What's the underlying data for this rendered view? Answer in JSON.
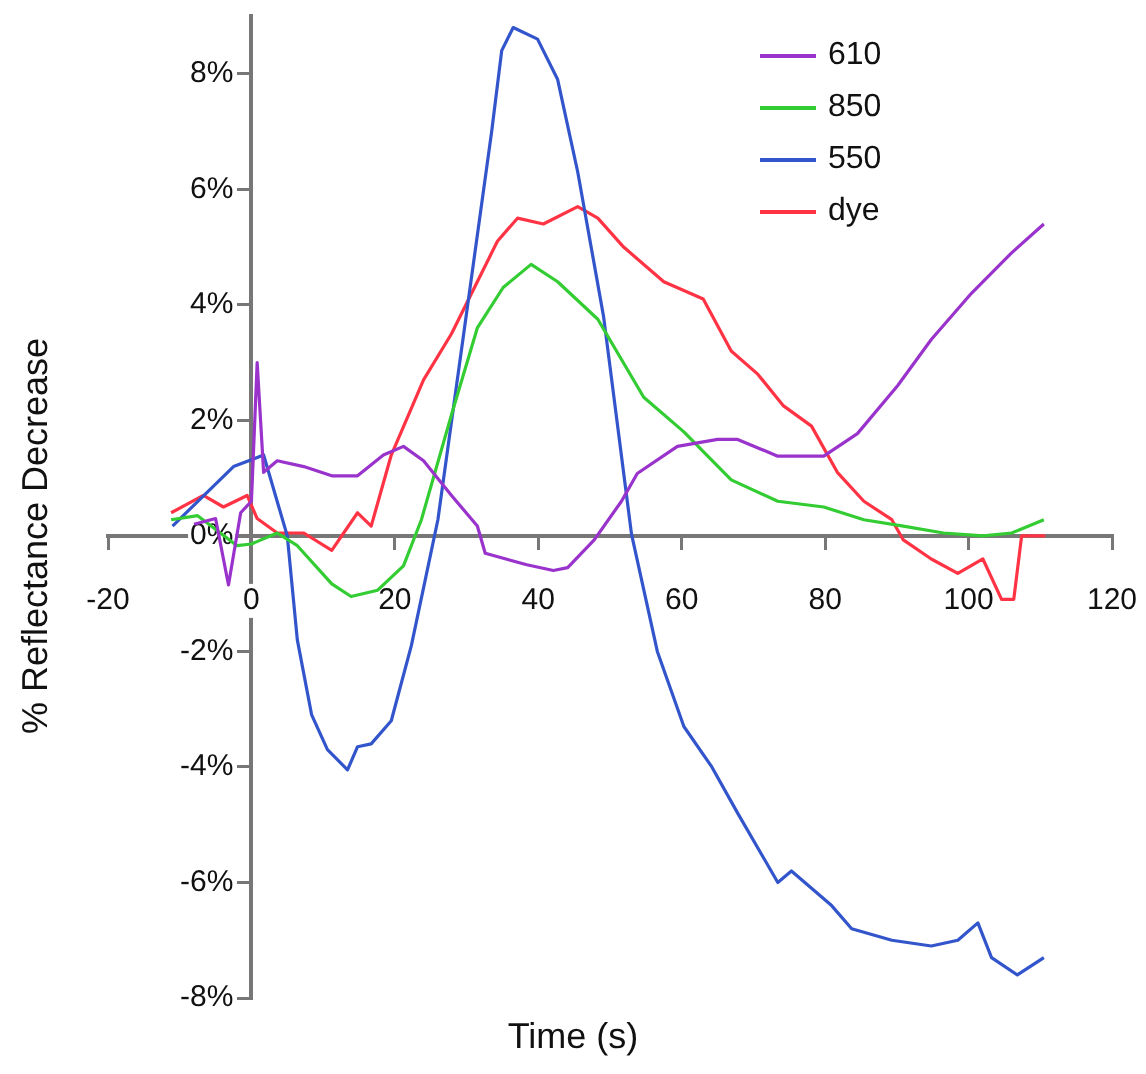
{
  "chart_data": {
    "type": "line",
    "xlabel": "Time (s)",
    "ylabel": "% Reflectance Decrease",
    "xlim": [
      -20,
      120
    ],
    "xticks": [
      -20,
      0,
      20,
      40,
      60,
      80,
      100,
      120
    ],
    "ylim": [
      -8,
      9
    ],
    "yticks": [
      {
        "value": -8,
        "label": "-8%"
      },
      {
        "value": -6,
        "label": "-6%"
      },
      {
        "value": -4,
        "label": "-4%"
      },
      {
        "value": -2,
        "label": "-2%"
      },
      {
        "value": 0,
        "label": "0%"
      },
      {
        "value": 2,
        "label": "2%"
      },
      {
        "value": 4,
        "label": "4%"
      },
      {
        "value": 6,
        "label": "6%"
      },
      {
        "value": 8,
        "label": "8%"
      }
    ],
    "grid": false,
    "legend": "top right",
    "marker": "none",
    "line_style": "solid",
    "series": [
      {
        "name": "610",
        "color": "#9933cc",
        "x": [
          -8,
          -5,
          -3.2,
          -1.5,
          0,
          0.8,
          1.7,
          3.6,
          7.3,
          11.2,
          14.8,
          18.4,
          21.2,
          24,
          27.9,
          31.5,
          32.6,
          38.4,
          42.1,
          44.1,
          47.8,
          51.6,
          53.8,
          59.4,
          65,
          67.8,
          73.4,
          79.8,
          84.5,
          90.1,
          94.8,
          100.4,
          106,
          110.5
        ],
        "values": [
          0.2,
          0.3,
          -0.85,
          0.4,
          0.6,
          3.0,
          1.1,
          1.3,
          1.2,
          1.04,
          1.04,
          1.4,
          1.55,
          1.3,
          0.7,
          0.17,
          -0.3,
          -0.5,
          -0.6,
          -0.55,
          -0.07,
          0.6,
          1.08,
          1.55,
          1.67,
          1.67,
          1.38,
          1.38,
          1.77,
          2.6,
          3.4,
          4.2,
          4.9,
          5.4
        ]
      },
      {
        "name": "850",
        "color": "#33cc33",
        "x": [
          -11.2,
          -7.5,
          -2,
          0,
          3.6,
          6.4,
          11.2,
          13.9,
          17.6,
          21.2,
          23.7,
          27.9,
          31.5,
          35.1,
          39,
          42.7,
          48.3,
          54.7,
          60.3,
          66.9,
          73.4,
          79.8,
          85.4,
          90.9,
          96.5,
          102,
          106,
          110.5
        ],
        "values": [
          0.28,
          0.35,
          -0.17,
          -0.14,
          0.05,
          -0.17,
          -0.83,
          -1.05,
          -0.94,
          -0.52,
          0.28,
          2.1,
          3.6,
          4.3,
          4.7,
          4.4,
          3.75,
          2.4,
          1.8,
          0.97,
          0.6,
          0.5,
          0.28,
          0.17,
          0.05,
          0,
          0.05,
          0.28
        ]
      },
      {
        "name": "550",
        "color": "#3355cc",
        "x": [
          -11,
          -2.5,
          1.7,
          5,
          6.4,
          8.4,
          10.6,
          13.4,
          14.8,
          16.7,
          19.5,
          22.3,
          24,
          26,
          29.6,
          33.5,
          34.9,
          36.5,
          39.9,
          42.7,
          45.5,
          49.1,
          53,
          56.6,
          60.3,
          64.2,
          67.8,
          73.4,
          75.3,
          80.9,
          83.7,
          89.3,
          94.8,
          98.5,
          101.3,
          103.2,
          106.8,
          110.5
        ],
        "values": [
          0.17,
          1.2,
          1.4,
          0,
          -1.8,
          -3.1,
          -3.7,
          -4.05,
          -3.65,
          -3.6,
          -3.2,
          -1.9,
          -0.9,
          0.28,
          3.5,
          7.0,
          8.4,
          8.8,
          8.6,
          7.9,
          6.3,
          3.8,
          0.03,
          -2.0,
          -3.3,
          -4.0,
          -4.8,
          -6.0,
          -5.8,
          -6.4,
          -6.8,
          -7.0,
          -7.1,
          -7.0,
          -6.7,
          -7.3,
          -7.6,
          -7.3
        ]
      },
      {
        "name": "dye",
        "color": "#ff3344",
        "x": [
          -11.2,
          -6.7,
          -3.9,
          -0.6,
          0.8,
          3.6,
          7.3,
          11.2,
          14.8,
          16.7,
          19.5,
          24,
          27.9,
          31.5,
          34.3,
          37.1,
          40.7,
          45.5,
          48.3,
          51.9,
          57.5,
          63,
          66.9,
          70.6,
          74.2,
          78.1,
          81.7,
          85.4,
          89.3,
          90.9,
          94.8,
          98.5,
          102,
          104.6,
          106.3,
          107.4,
          110.7
        ],
        "values": [
          0.4,
          0.7,
          0.5,
          0.7,
          0.3,
          0.05,
          0.05,
          -0.25,
          0.4,
          0.17,
          1.4,
          2.7,
          3.5,
          4.4,
          5.1,
          5.5,
          5.4,
          5.7,
          5.5,
          5.0,
          4.4,
          4.1,
          3.2,
          2.8,
          2.25,
          1.9,
          1.1,
          0.6,
          0.28,
          -0.07,
          -0.4,
          -0.65,
          -0.4,
          -1.1,
          -1.1,
          0,
          0
        ]
      }
    ]
  }
}
